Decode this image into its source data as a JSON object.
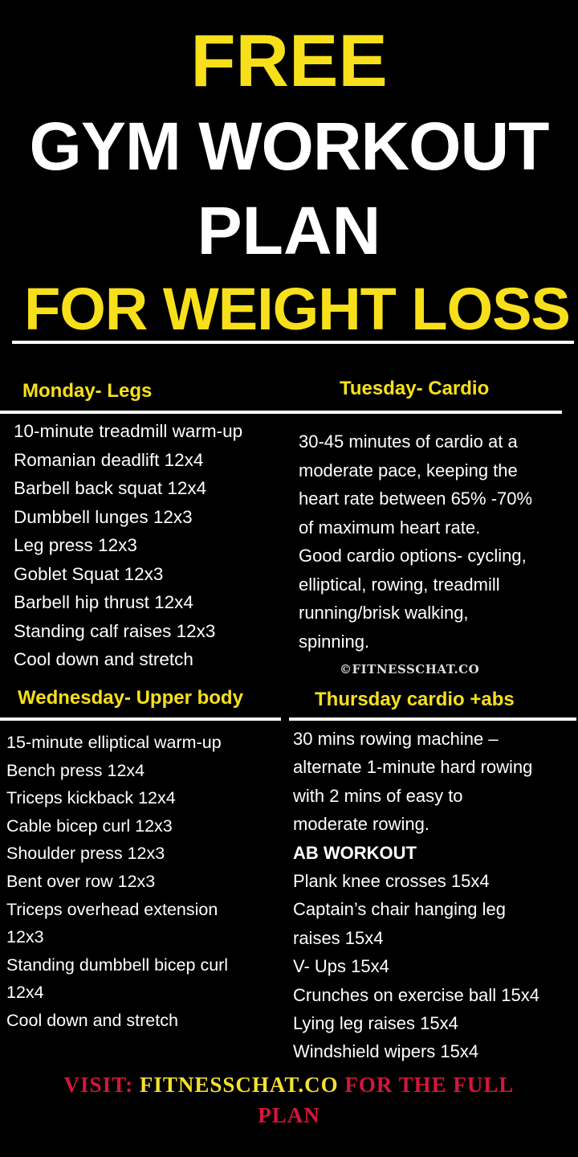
{
  "title": {
    "line1": "FREE",
    "line2": "GYM WORKOUT",
    "line3": "PLAN",
    "line4": "FOR WEIGHT LOSS"
  },
  "colors": {
    "accent_yellow": "#f7e01b",
    "footer_red": "#d4163c",
    "background": "#000000",
    "text": "#ffffff"
  },
  "monday": {
    "heading": "Monday- Legs",
    "items": [
      "10-minute treadmill warm-up",
      "Romanian deadlift 12x4",
      "Barbell back squat 12x4",
      "Dumbbell lunges 12x3",
      "Leg press 12x3",
      "Goblet Squat 12x3",
      "Barbell hip thrust 12x4",
      "Standing calf raises 12x3",
      "Cool down and stretch"
    ]
  },
  "tuesday": {
    "heading": "Tuesday- Cardio",
    "items": [
      "30-45 minutes of cardio at a",
      "moderate pace, keeping the",
      "heart rate between 65% -70%",
      "of maximum heart rate.",
      "Good cardio options- cycling,",
      "elliptical, rowing, treadmill",
      "running/brisk walking,",
      "spinning."
    ]
  },
  "watermark": "©FITNESSCHAT.CO",
  "wednesday": {
    "heading": "Wednesday- Upper body",
    "items": [
      "15-minute elliptical warm-up",
      "Bench press 12x4",
      "Triceps kickback 12x4",
      "Cable bicep curl 12x3",
      "Shoulder press 12x3",
      "Bent over row 12x3",
      "Triceps overhead extension",
      "12x3",
      "Standing dumbbell bicep curl",
      "12x4",
      "Cool down and stretch"
    ]
  },
  "thursday": {
    "heading": "Thursday cardio +abs",
    "items": [
      "30 mins rowing machine –",
      "alternate 1-minute hard rowing",
      "with 2 mins of easy to",
      "moderate rowing."
    ],
    "ab_heading": "AB WORKOUT",
    "ab_items": [
      "Plank knee crosses 15x4",
      "Captain’s chair hanging leg",
      "raises 15x4",
      "V- Ups 15x4",
      "Crunches on exercise ball 15x4",
      "Lying leg raises 15x4",
      "Windshield wipers 15x4"
    ]
  },
  "footer": {
    "visit": "VISIT: ",
    "site": "FITNESSCHAT.CO",
    "rest": " FOR THE FULL",
    "line2": "PLAN"
  }
}
